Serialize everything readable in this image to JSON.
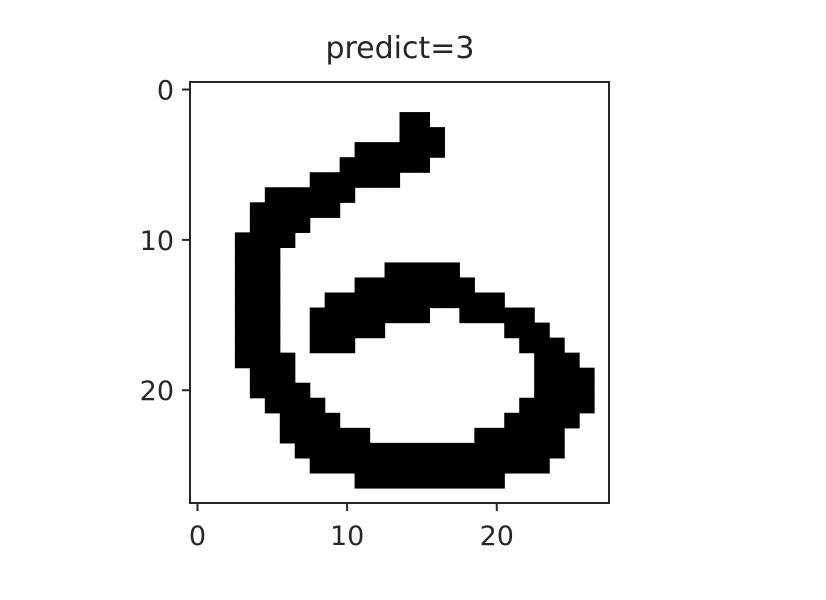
{
  "chart_data": {
    "type": "heatmap",
    "title": "predict=3",
    "xlabel": "",
    "ylabel": "",
    "shape": [
      28,
      28
    ],
    "colormap": "binary",
    "extent_x": [
      -0.5,
      27.5
    ],
    "extent_y": [
      27.5,
      -0.5
    ],
    "x_ticks": [
      0,
      10,
      20
    ],
    "y_ticks": [
      0,
      10,
      20
    ],
    "x_tick_labels": [
      "0",
      "10",
      "20"
    ],
    "y_tick_labels": [
      "0",
      "10",
      "20"
    ],
    "grid": false,
    "pixel_rows": [
      "............................",
      "............................",
      "..............##............",
      "..............###...........",
      "...........######...........",
      "..........######............",
      "........######..............",
      ".....######.................",
      "....######..................",
      "....####....................",
      "...####.....................",
      "...###......................",
      "...###.......#####..........",
      "...###.....########.........",
      "...###...############.......",
      "...###..########..#####.....",
      "...###..#####........###....",
      "...###..###...........###...",
      "...####................###..",
      "....###................####.",
      "....####...............####.",
      ".....####.............#####.",
      "......####...........#####..",
      "......######.......######...",
      ".......##################...",
      "........################....",
      "...........##########.......",
      "............................"
    ]
  },
  "colors": {
    "ink": "#000000",
    "background": "#ffffff",
    "axes": "#262626"
  }
}
